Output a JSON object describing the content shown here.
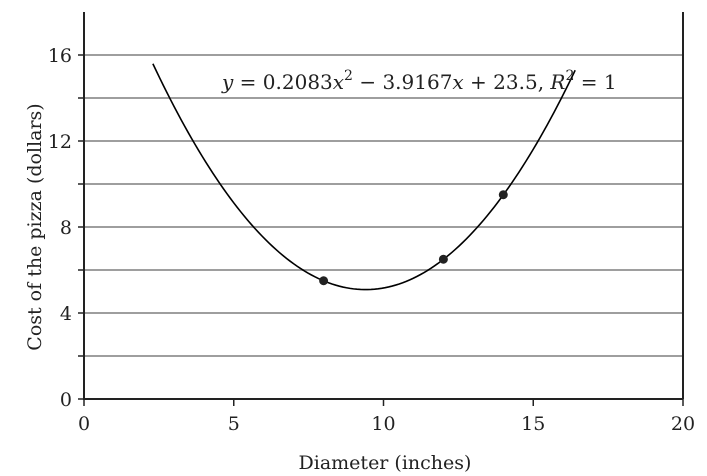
{
  "chart_data": {
    "type": "scatter",
    "xlabel": "Diameter (inches)",
    "ylabel": "Cost of the pizza (dollars)",
    "xlim": [
      0,
      20
    ],
    "ylim": [
      0,
      18
    ],
    "x_ticks": [
      "0",
      "5",
      "10",
      "15",
      "20"
    ],
    "y_ticks": [
      "0",
      "4",
      "8",
      "12",
      "16"
    ],
    "gridlines_y": [
      2,
      4,
      6,
      8,
      10,
      12,
      14,
      16
    ],
    "grid": "horizontal",
    "points": [
      {
        "x": 8,
        "y": 5.5
      },
      {
        "x": 12,
        "y": 6.5
      },
      {
        "x": 14,
        "y": 9.5
      }
    ],
    "trendline": {
      "type": "polynomial",
      "coefficients": [
        0.2083,
        -3.9167,
        23.5
      ],
      "x_range": [
        2.3,
        16.4
      ],
      "equation_parts": {
        "lhs": "y",
        "eq1": " = 0.2083",
        "xvar": "x",
        "sq": "2",
        "mid": " − 3.9167",
        "tail": " + 23.5, ",
        "rvar": "R",
        "rsq": "2",
        "rval": " = 1"
      }
    },
    "colors": {
      "grid": "#9e9e9e",
      "axis": "#222222",
      "curve": "#000000",
      "points": "#222222"
    }
  }
}
